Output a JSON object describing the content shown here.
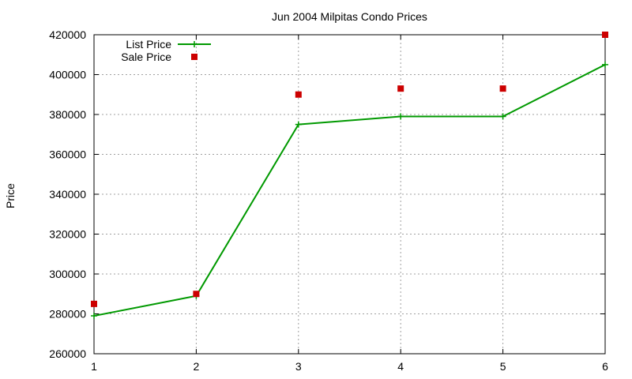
{
  "chart_data": {
    "type": "line",
    "title": "Jun 2004 Milpitas Condo Prices",
    "xlabel": "",
    "ylabel": "Price",
    "x": [
      1,
      2,
      3,
      4,
      5,
      6
    ],
    "xlim": [
      1,
      6
    ],
    "ylim": [
      260000,
      420000
    ],
    "xticks": [
      "1",
      "2",
      "3",
      "4",
      "5",
      "6"
    ],
    "yticks": [
      "260000",
      "280000",
      "300000",
      "320000",
      "340000",
      "360000",
      "380000",
      "400000",
      "420000"
    ],
    "grid": true,
    "legend_position": "top-left",
    "series": [
      {
        "name": "List Price",
        "style": "line+cross",
        "color": "#009900",
        "values": [
          279000,
          289000,
          375000,
          379000,
          379000,
          405000
        ]
      },
      {
        "name": "Sale Price",
        "style": "square",
        "color": "#cc0000",
        "values": [
          285000,
          290000,
          390000,
          393000,
          393000,
          420000
        ]
      }
    ]
  }
}
